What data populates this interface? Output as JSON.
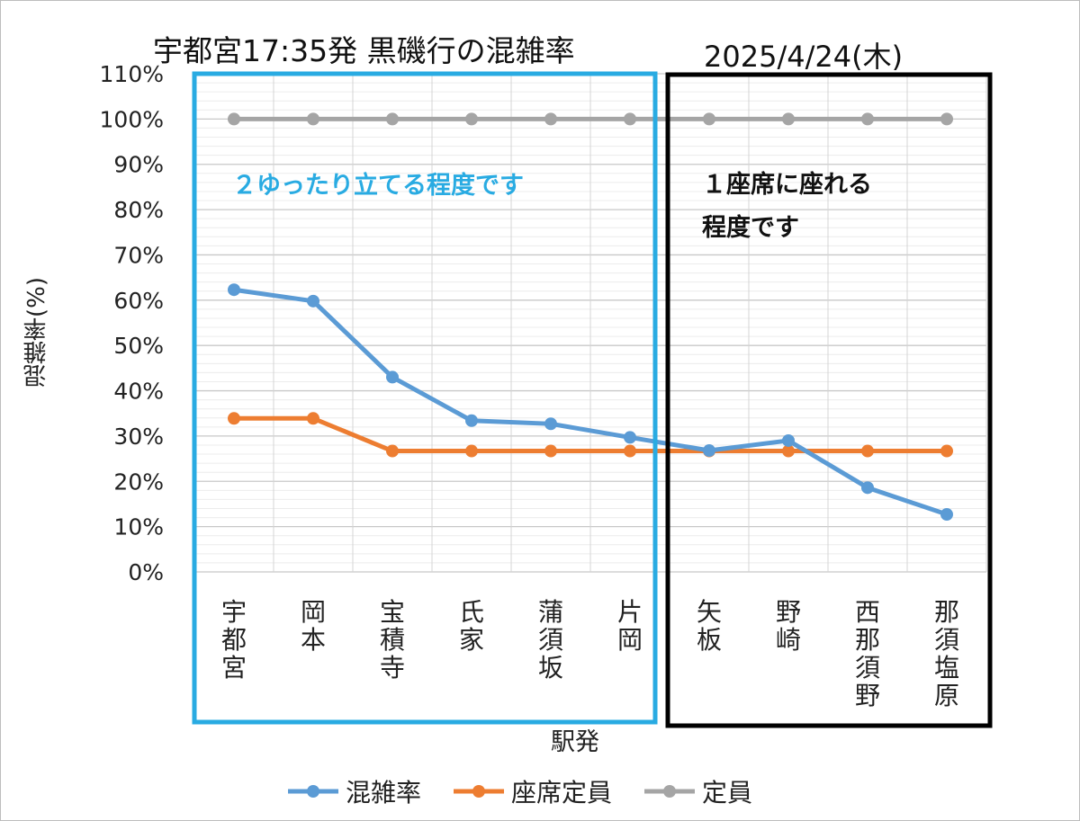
{
  "title": "宇都宮17:35発  黒磯行の混雑率",
  "date": "2025/4/24(木)",
  "chart_data": {
    "type": "line",
    "categories": [
      "宇都宮",
      "岡本",
      "宝積寺",
      "氏家",
      "蒲須坂",
      "片岡",
      "矢板",
      "野崎",
      "西那須野",
      "那須塩原"
    ],
    "series": [
      {
        "name": "混雑率",
        "color": "#5b9bd5",
        "values": [
          62.3,
          59.8,
          43.0,
          33.4,
          32.7,
          29.7,
          26.8,
          29.0,
          18.6,
          12.7
        ]
      },
      {
        "name": "座席定員",
        "color": "#ed7d31",
        "values": [
          33.9,
          33.9,
          26.7,
          26.7,
          26.7,
          26.7,
          26.7,
          26.7,
          26.7,
          26.7
        ]
      },
      {
        "name": "定員",
        "color": "#a5a5a5",
        "values": [
          100,
          100,
          100,
          100,
          100,
          100,
          100,
          100,
          100,
          100
        ]
      }
    ],
    "ylabel": "混雑率(%)",
    "xlabel": "駅発",
    "ylim": [
      0,
      110
    ],
    "yticks": [
      "0%",
      "10%",
      "20%",
      "30%",
      "40%",
      "50%",
      "60%",
      "70%",
      "80%",
      "90%",
      "100%",
      "110%"
    ],
    "grid": true,
    "legend_position": "bottom"
  },
  "annotations": {
    "left_box": "２ゆったり立てる程度です",
    "right_box_line1": "１座席に座れる",
    "right_box_line2": "程度です",
    "left_box_color": "#29abe2",
    "right_box_color": "#000000"
  }
}
